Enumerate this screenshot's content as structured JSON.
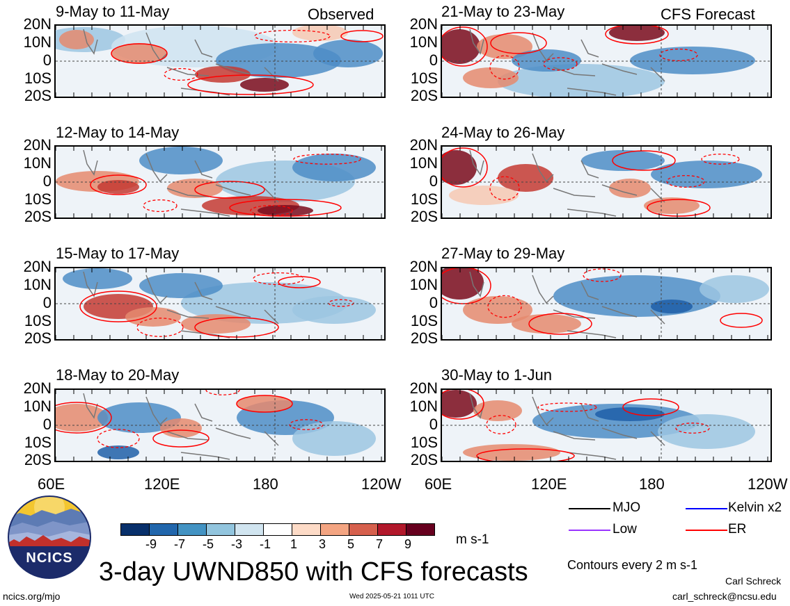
{
  "panels": {
    "left": [
      {
        "title": "9-May to 11-May",
        "tag": "Observed"
      },
      {
        "title": "12-May to 14-May",
        "tag": ""
      },
      {
        "title": "15-May to 17-May",
        "tag": ""
      },
      {
        "title": "18-May to 20-May",
        "tag": ""
      }
    ],
    "right": [
      {
        "title": "21-May to 23-May",
        "tag": "CFS Forecast"
      },
      {
        "title": "24-May to 26-May",
        "tag": ""
      },
      {
        "title": "27-May to 29-May",
        "tag": ""
      },
      {
        "title": "30-May to 1-Jun",
        "tag": ""
      }
    ]
  },
  "lat_labels": [
    "20N",
    "10N",
    "0",
    "10S",
    "20S"
  ],
  "lon_labels": [
    "60E",
    "120E",
    "180",
    "120W"
  ],
  "colorbar": {
    "ticks": [
      "-9",
      "-7",
      "-5",
      "-3",
      "-1",
      "1",
      "3",
      "5",
      "7",
      "9"
    ],
    "units": "m s-1",
    "colors": [
      "#08306b",
      "#2166ac",
      "#4393c3",
      "#92c5de",
      "#d1e5f0",
      "#ffffff",
      "#fddbc7",
      "#f4a582",
      "#d6604d",
      "#b2182b",
      "#67001f"
    ]
  },
  "legend": {
    "items": [
      {
        "label": "MJO",
        "color": "#000000"
      },
      {
        "label": "Kelvin x2",
        "color": "#0000ff"
      },
      {
        "label": "Low",
        "color": "#9933ff"
      },
      {
        "label": "ER",
        "color": "#ff0000"
      }
    ],
    "contour_note": "Contours every 2 m s-1"
  },
  "main_title": "3-day UWND850 with CFS forecasts",
  "logo_text": "NCICS",
  "footer": {
    "url": "ncics.org/mjo",
    "timestamp": "Wed 2025-05-21 1011 UTC",
    "author": "Carl Schreck",
    "email": "carl_schreck@ncsu.edu"
  }
}
